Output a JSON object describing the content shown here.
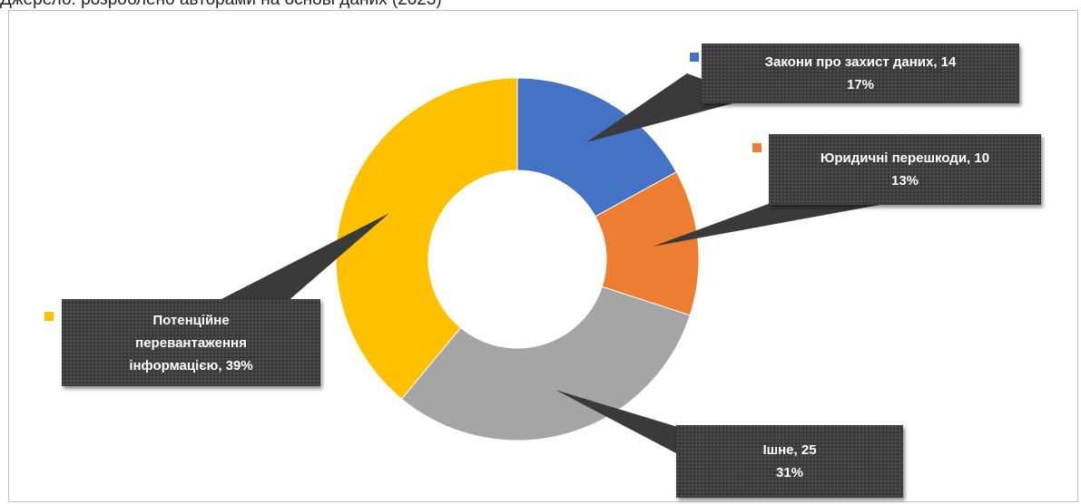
{
  "page": {
    "caption": "Джерело: розроблено авторами на основі даних (2023)"
  },
  "chart_data": {
    "type": "pie",
    "variant": "doughnut",
    "slices": [
      {
        "name": "Закони про захист даних",
        "value": 14,
        "percent": "17%",
        "color": "#4472c4",
        "label_lines": [
          "Закони про захист даних, 14",
          "17%"
        ]
      },
      {
        "name": "Юридичні перешкоди",
        "value": 10,
        "percent": "13%",
        "color": "#ed7d31",
        "label_lines": [
          "Юридичні перешкоди, 10",
          "13%"
        ]
      },
      {
        "name": "Ішне",
        "value": 25,
        "percent": "31%",
        "color": "#a5a5a5",
        "label_lines": [
          "Ішне, 25",
          "31%"
        ]
      },
      {
        "name": "Потенційне перевантаження інформацією",
        "percent": "39%",
        "color": "#ffc000",
        "label_lines": [
          "Потенційне",
          "перевантаження",
          "інформацією, 39%"
        ]
      }
    ]
  }
}
